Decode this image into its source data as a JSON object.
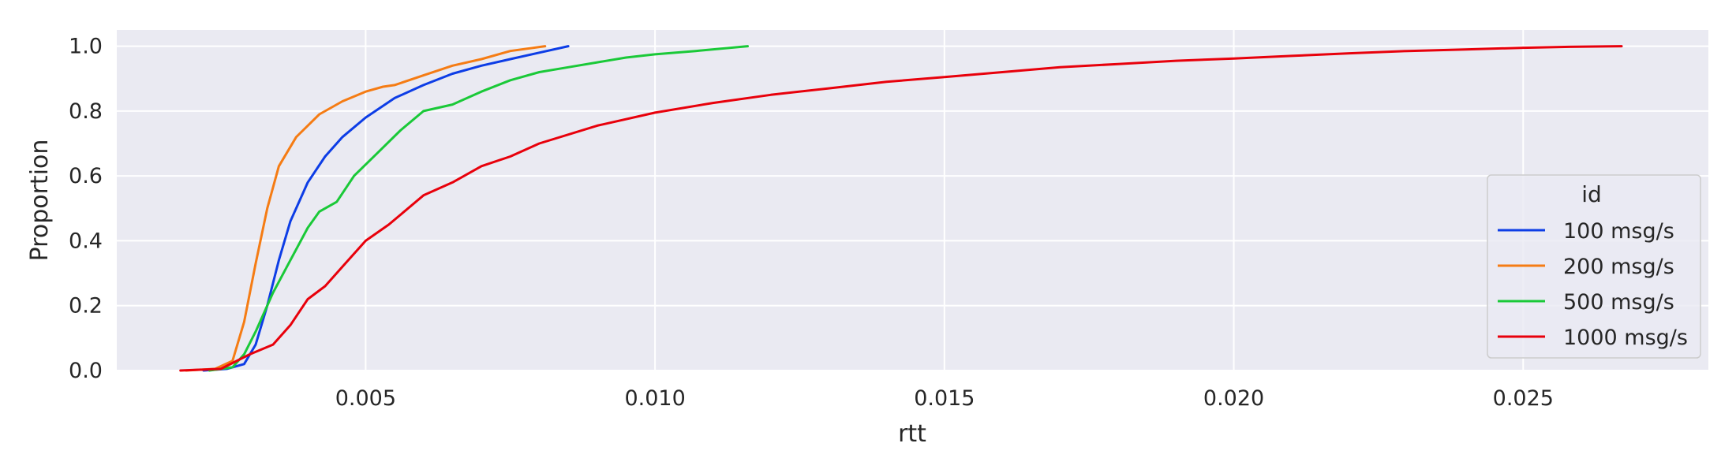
{
  "chart_data": {
    "type": "line",
    "subtype": "ecdf",
    "xlabel": "rtt",
    "ylabel": "Proportion",
    "xlim": [
      0.0007,
      0.0282
    ],
    "ylim": [
      0,
      1.05
    ],
    "xticks": [
      0.005,
      0.01,
      0.015,
      0.02,
      0.025
    ],
    "xtick_labels": [
      "0.005",
      "0.010",
      "0.015",
      "0.020",
      "0.025"
    ],
    "yticks": [
      0.0,
      0.2,
      0.4,
      0.6,
      0.8,
      1.0
    ],
    "ytick_labels": [
      "0.0",
      "0.2",
      "0.4",
      "0.6",
      "0.8",
      "1.0"
    ],
    "grid": true,
    "background": "#eaeaf2",
    "legend": {
      "title": "id",
      "position": "lower-right"
    },
    "series": [
      {
        "name": "100 msg/s",
        "color": "#0d3de6",
        "points": [
          [
            0.0022,
            0.0
          ],
          [
            0.0026,
            0.005
          ],
          [
            0.0029,
            0.02
          ],
          [
            0.0031,
            0.08
          ],
          [
            0.0033,
            0.2
          ],
          [
            0.0035,
            0.34
          ],
          [
            0.0037,
            0.46
          ],
          [
            0.004,
            0.58
          ],
          [
            0.0043,
            0.66
          ],
          [
            0.0046,
            0.72
          ],
          [
            0.005,
            0.78
          ],
          [
            0.0055,
            0.84
          ],
          [
            0.006,
            0.88
          ],
          [
            0.0065,
            0.915
          ],
          [
            0.007,
            0.94
          ],
          [
            0.0075,
            0.96
          ],
          [
            0.008,
            0.98
          ],
          [
            0.0085,
            1.0
          ]
        ]
      },
      {
        "name": "200 msg/s",
        "color": "#f57c14",
        "points": [
          [
            0.0019,
            0.0
          ],
          [
            0.0024,
            0.005
          ],
          [
            0.0027,
            0.03
          ],
          [
            0.0029,
            0.15
          ],
          [
            0.0031,
            0.33
          ],
          [
            0.0033,
            0.5
          ],
          [
            0.0035,
            0.63
          ],
          [
            0.0038,
            0.72
          ],
          [
            0.0042,
            0.79
          ],
          [
            0.0046,
            0.83
          ],
          [
            0.005,
            0.86
          ],
          [
            0.0053,
            0.875
          ],
          [
            0.0055,
            0.88
          ],
          [
            0.006,
            0.91
          ],
          [
            0.0065,
            0.94
          ],
          [
            0.007,
            0.96
          ],
          [
            0.0075,
            0.985
          ],
          [
            0.0081,
            1.0
          ]
        ]
      },
      {
        "name": "500 msg/s",
        "color": "#1ac938",
        "points": [
          [
            0.0023,
            0.0
          ],
          [
            0.0027,
            0.01
          ],
          [
            0.0029,
            0.05
          ],
          [
            0.0031,
            0.12
          ],
          [
            0.0034,
            0.24
          ],
          [
            0.0037,
            0.34
          ],
          [
            0.004,
            0.44
          ],
          [
            0.0042,
            0.49
          ],
          [
            0.0045,
            0.52
          ],
          [
            0.0048,
            0.6
          ],
          [
            0.0052,
            0.67
          ],
          [
            0.0056,
            0.74
          ],
          [
            0.006,
            0.8
          ],
          [
            0.0065,
            0.82
          ],
          [
            0.007,
            0.86
          ],
          [
            0.0075,
            0.895
          ],
          [
            0.008,
            0.92
          ],
          [
            0.0085,
            0.935
          ],
          [
            0.009,
            0.95
          ],
          [
            0.0095,
            0.965
          ],
          [
            0.01,
            0.975
          ],
          [
            0.0107,
            0.985
          ],
          [
            0.0116,
            1.0
          ]
        ]
      },
      {
        "name": "1000 msg/s",
        "color": "#e8000b",
        "points": [
          [
            0.0018,
            0.0
          ],
          [
            0.0025,
            0.005
          ],
          [
            0.003,
            0.05
          ],
          [
            0.0034,
            0.08
          ],
          [
            0.0037,
            0.14
          ],
          [
            0.004,
            0.22
          ],
          [
            0.0043,
            0.26
          ],
          [
            0.0046,
            0.32
          ],
          [
            0.005,
            0.4
          ],
          [
            0.0054,
            0.45
          ],
          [
            0.006,
            0.54
          ],
          [
            0.0065,
            0.58
          ],
          [
            0.007,
            0.63
          ],
          [
            0.0075,
            0.66
          ],
          [
            0.008,
            0.7
          ],
          [
            0.009,
            0.755
          ],
          [
            0.01,
            0.795
          ],
          [
            0.011,
            0.825
          ],
          [
            0.012,
            0.85
          ],
          [
            0.013,
            0.87
          ],
          [
            0.014,
            0.89
          ],
          [
            0.015,
            0.905
          ],
          [
            0.016,
            0.92
          ],
          [
            0.017,
            0.935
          ],
          [
            0.018,
            0.945
          ],
          [
            0.019,
            0.955
          ],
          [
            0.02,
            0.962
          ],
          [
            0.021,
            0.97
          ],
          [
            0.022,
            0.978
          ],
          [
            0.023,
            0.985
          ],
          [
            0.024,
            0.99
          ],
          [
            0.025,
            0.995
          ],
          [
            0.0258,
            0.998
          ],
          [
            0.0267,
            1.0
          ]
        ]
      }
    ]
  }
}
